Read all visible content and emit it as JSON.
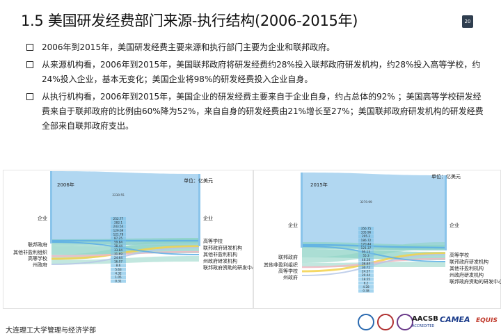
{
  "title": "1.5  美国研发经费部门来源-执行结构(2006-2015年)",
  "page_number": "20",
  "bullets": [
    "2006年到2015年，美国研发经费主要来源和执行部门主要为企业和联邦政府。",
    "从来源机构看，2006年到2015年，美国联邦政府将研发经费约28%投入联邦政府研发机构，约28%投入高等学校，约24%投入企业，基本无变化；美国企业将98%的研发经费投入企业自身。",
    "从执行机构看，2006年到2015年，美国企业的研发经费主要来自于企业自身，约占总体的92% ；美国高等学校研发经费来自于联邦政府的比例由60%降为52%，来自自身的研发经费由21%增长至27%；美国联邦政府研发机构的研发经费全部来自联邦政府支出。"
  ],
  "footer": "大连理工大学管理与经济学部",
  "logos": {
    "aacsb": "AACSB",
    "aacsb_sub": "ACCREDITED",
    "camea": "CAMEA",
    "equis": "EQUIS"
  },
  "colors": {
    "enterprise": "#a9d3f0",
    "enterprise_flow": "#5aaee6",
    "federal": "#8fd3c5",
    "university": "#f2d14a",
    "nonprofit": "#f0b8c2",
    "state": "#b5c7e6",
    "bar": "#7fc3e8"
  },
  "chart_data": [
    {
      "type": "sankey",
      "year": "2006年",
      "unit": "单位：亿美元",
      "left_labels": [
        "企业",
        "联邦政府",
        "其他非盈利组织",
        "高等学校",
        "州政府"
      ],
      "right_labels": [
        "企业",
        "高等学校",
        "联邦政府研发机构",
        "其他非盈利机构",
        "州政府研发机构",
        "联邦政府资助的研发中心"
      ],
      "value_labels": [
        "2230.55",
        "252.77",
        "282.1",
        "243.54",
        "129.69",
        "121.78",
        "87.25",
        "59.84",
        "38.44",
        "33.84",
        "31.69",
        "24.64",
        "16.07",
        "8.6",
        "5.63",
        "4.32",
        "1.05",
        "0.31"
      ]
    },
    {
      "type": "sankey",
      "year": "2015年",
      "unit": "单位：亿美元",
      "left_labels": [
        "企业",
        "联邦政府",
        "其他非盈利组织",
        "高等学校",
        "州政府"
      ],
      "right_labels": [
        "企业",
        "高等学校",
        "联邦政府研发机构",
        "其他非盈利机构",
        "州政府研发机构",
        "联邦政府资助的研发中心"
      ],
      "value_labels": [
        "3270.99",
        "356.75",
        "335.96",
        "295.2",
        "186.72",
        "170.44",
        "121.37",
        "95.13",
        "55.3",
        "48.28",
        "36.64",
        "30.72",
        "24.57",
        "20.44",
        "18.55",
        "6.2",
        "4.28",
        "0.38"
      ]
    }
  ]
}
